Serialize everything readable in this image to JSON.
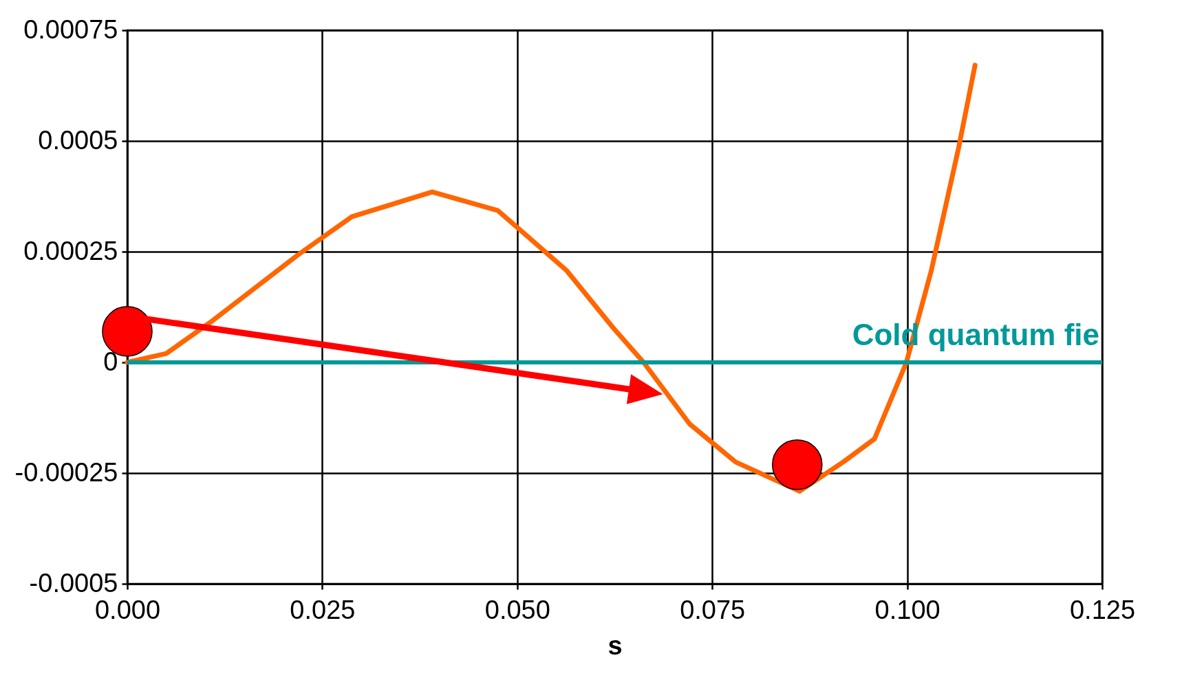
{
  "chart_data": {
    "type": "line",
    "xlabel": "s",
    "xlim": [
      0,
      0.125
    ],
    "xticks": [
      {
        "value": 0,
        "label": "0.000"
      },
      {
        "value": 0.025,
        "label": "0.025"
      },
      {
        "value": 0.05,
        "label": "0.050"
      },
      {
        "value": 0.075,
        "label": "0.075"
      },
      {
        "value": 0.1,
        "label": "0.100"
      },
      {
        "value": 0.125,
        "label": "0.125"
      }
    ],
    "ylim": [
      -0.0005,
      0.00075
    ],
    "yticks": [
      -0.0005,
      -0.00025,
      0,
      0.00025,
      0.0005,
      0.00075
    ],
    "grid": true,
    "series": [
      {
        "color": "#ff6600",
        "x": [
          0,
          0.005,
          0.011,
          0.0219,
          0.0288,
          0.0391,
          0.0475,
          0.0563,
          0.0623,
          0.0662,
          0.0721,
          0.078,
          0.0862,
          0.0918,
          0.0958,
          0.0999,
          0.1031,
          0.1066,
          0.1087
        ],
        "values": [
          0,
          2e-05,
          9.5e-05,
          0.000243,
          0.000329,
          0.000385,
          0.000343,
          0.000208,
          7.8e-05,
          0,
          -0.000139,
          -0.000225,
          -0.000291,
          -0.000225,
          -0.000173,
          0,
          0.000208,
          0.000485,
          0.000671
        ]
      },
      {
        "type": "scatter",
        "color": "#ff0000",
        "marker": "circle",
        "x": [
          0,
          0.0859
        ],
        "values": [
          7e-05,
          -0.000231
        ]
      }
    ],
    "ref_lines": [
      {
        "axis": "y",
        "value": 0,
        "label": "Cold quantum fie",
        "color": "#009999"
      }
    ]
  }
}
